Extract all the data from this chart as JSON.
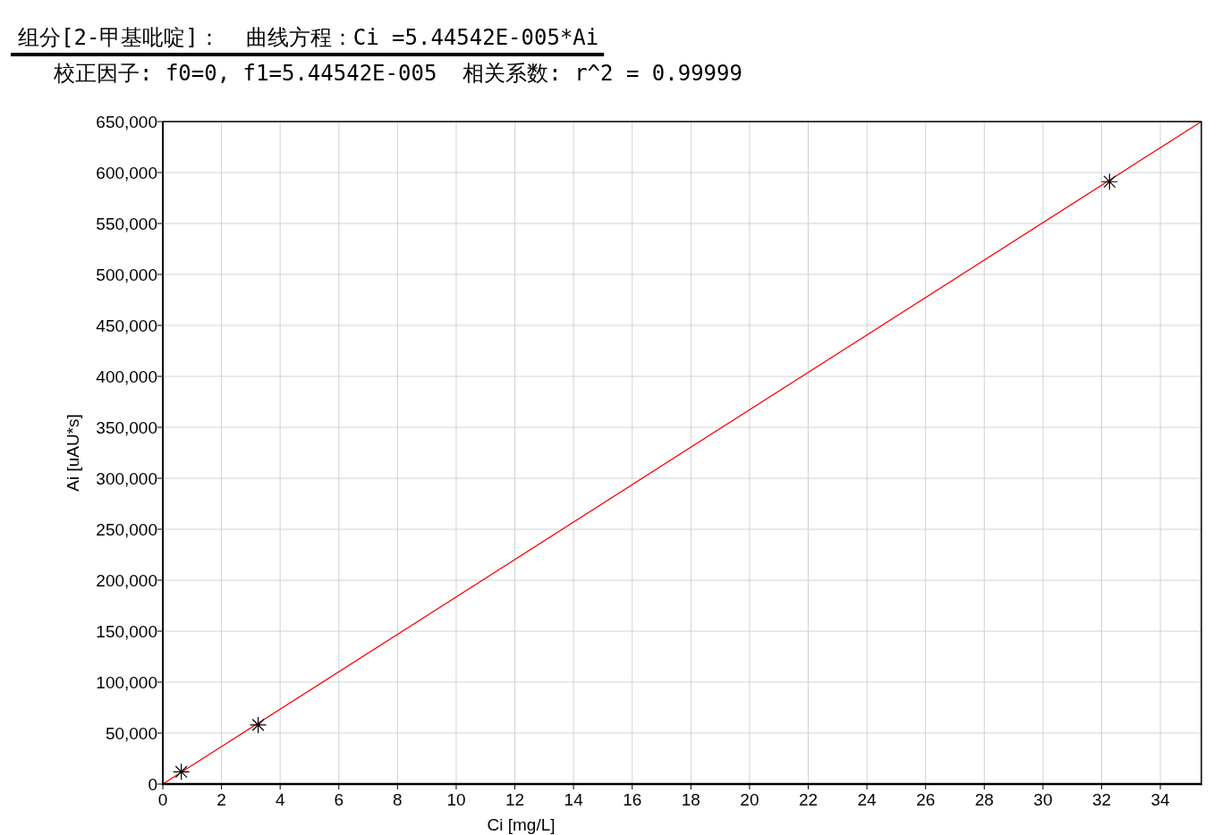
{
  "chart_data": {
    "type": "scatter",
    "title": "组分[2-甲基吡啶]：  曲线方程：Ci =5.44542E-005*Ai",
    "subtitle": "校正因子: f0=0, f1=5.44542E-005  相关系数: r^2 = 0.99999",
    "xlabel": "Ci [mg/L]",
    "ylabel": "Ai [uAU*s]",
    "xlim": [
      0,
      35.4
    ],
    "ylim": [
      0,
      650000
    ],
    "xticks": [
      0,
      2,
      4,
      6,
      8,
      10,
      12,
      14,
      16,
      18,
      20,
      22,
      24,
      26,
      28,
      30,
      32,
      34
    ],
    "yticks": [
      0,
      {
        "value": 50000,
        "label": "50,000"
      },
      {
        "value": 100000,
        "label": "100,000"
      },
      {
        "value": 150000,
        "label": "150,000"
      },
      {
        "value": 200000,
        "label": "200,000"
      },
      {
        "value": 250000,
        "label": "250,000"
      },
      {
        "value": 300000,
        "label": "300,000"
      },
      {
        "value": 350000,
        "label": "350,000"
      },
      {
        "value": 400000,
        "label": "400,000"
      },
      {
        "value": 450000,
        "label": "450,000"
      },
      {
        "value": 500000,
        "label": "500,000"
      },
      {
        "value": 550000,
        "label": "550,000"
      },
      {
        "value": 600000,
        "label": "600,000"
      },
      {
        "value": 650000,
        "label": "650,000"
      }
    ],
    "grid": true,
    "series": [
      {
        "type": "line",
        "color": "#ff0000",
        "marker": "none",
        "line_style": "solid",
        "x": [
          0,
          35.4
        ],
        "values": [
          0,
          650000
        ]
      },
      {
        "color": "#000000",
        "marker": "cross",
        "x": [
          0.63,
          3.25,
          32.27
        ],
        "values": [
          12000,
          58000,
          591000
        ]
      }
    ]
  }
}
